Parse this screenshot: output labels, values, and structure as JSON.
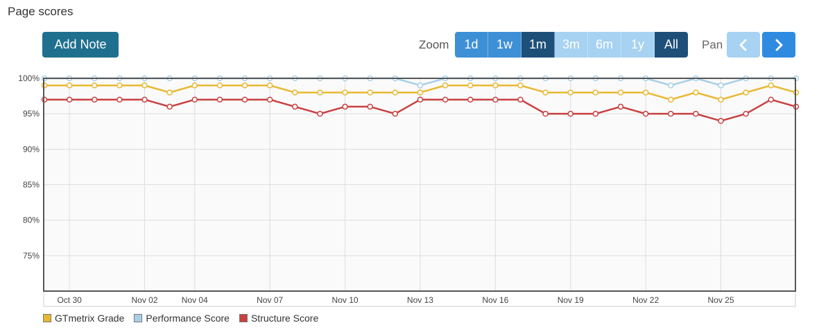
{
  "title": "Page scores",
  "add_note_label": "Add Note",
  "zoom_label": "Zoom",
  "zoom_options": [
    {
      "label": "1d",
      "state": "normal"
    },
    {
      "label": "1w",
      "state": "normal"
    },
    {
      "label": "1m",
      "state": "active"
    },
    {
      "label": "3m",
      "state": "disabled"
    },
    {
      "label": "6m",
      "state": "disabled"
    },
    {
      "label": "1y",
      "state": "disabled"
    },
    {
      "label": "All",
      "state": "active"
    }
  ],
  "pan_label": "Pan",
  "pan_prev_icon": "chevron-left-icon",
  "pan_next_icon": "chevron-right-icon",
  "chart_data": {
    "type": "line",
    "x_start": "Oct 29",
    "x_step_days": 1,
    "x_tick_labels": [
      "Oct 30",
      "Nov 02",
      "Nov 04",
      "Nov 07",
      "Nov 10",
      "Nov 13",
      "Nov 16",
      "Nov 19",
      "Nov 22",
      "Nov 25"
    ],
    "y_tick_labels": [
      "100%",
      "95%",
      "90%",
      "85%",
      "80%",
      "75%"
    ],
    "ylim": [
      70,
      100
    ],
    "grid": true,
    "legend_position": "bottom-left",
    "series": [
      {
        "name": "GTmetrix Grade",
        "color": "#e8b830",
        "values": [
          99,
          99,
          99,
          99,
          99,
          98,
          99,
          99,
          99,
          99,
          98,
          98,
          98,
          98,
          98,
          98,
          99,
          99,
          99,
          99,
          98,
          98,
          98,
          98,
          98,
          97,
          98,
          97,
          98,
          99,
          98
        ]
      },
      {
        "name": "Performance Score",
        "color": "#a9cfe8",
        "values": [
          100,
          100,
          100,
          100,
          100,
          100,
          100,
          100,
          100,
          100,
          100,
          100,
          100,
          100,
          100,
          99,
          100,
          100,
          100,
          100,
          100,
          100,
          100,
          100,
          100,
          99,
          100,
          99,
          100,
          100,
          100
        ]
      },
      {
        "name": "Structure Score",
        "color": "#c94040",
        "values": [
          97,
          97,
          97,
          97,
          97,
          96,
          97,
          97,
          97,
          97,
          96,
          95,
          96,
          96,
          95,
          97,
          97,
          97,
          97,
          97,
          95,
          95,
          95,
          96,
          95,
          95,
          95,
          94,
          95,
          97,
          96
        ]
      }
    ]
  }
}
